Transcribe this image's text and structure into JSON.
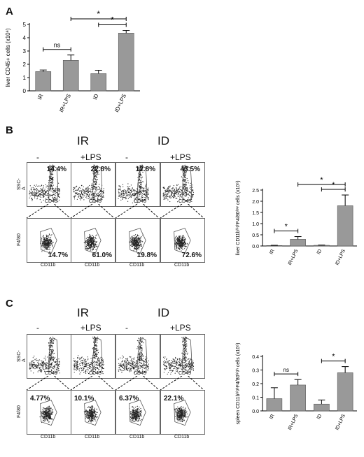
{
  "panels": {
    "A": {
      "letter": "A"
    },
    "B": {
      "letter": "B",
      "group_IR": "IR",
      "group_ID": "ID"
    },
    "C": {
      "letter": "C",
      "group_IR": "IR",
      "group_ID": "ID"
    }
  },
  "flow": {
    "conditions": [
      "-LPS",
      "+LPS",
      "-LPS",
      "+LPS"
    ],
    "top_xlabel": "CD45",
    "top_ylabel": "SSC-A",
    "bottom_xlabel": "CD11b",
    "bottom_ylabel": "F4/80",
    "B_top_pcts": [
      "14.4%",
      "22.8%",
      "12.8%",
      "43.5%"
    ],
    "B_bottom_pcts": [
      "14.7%",
      "61.0%",
      "19.8%",
      "72.6%"
    ],
    "C_bottom_pcts": [
      "4.77%",
      "10.1%",
      "6.37%",
      "22.1%"
    ]
  },
  "chart_data": [
    {
      "id": "A",
      "type": "bar",
      "categories": [
        "IR",
        "IR+LPS",
        "ID",
        "ID+LPS"
      ],
      "values": [
        1.45,
        2.3,
        1.3,
        4.35
      ],
      "errors": [
        0.12,
        0.4,
        0.25,
        0.2
      ],
      "ylabel": "liver CD45+ cells (x10⁶)",
      "ylim": [
        0,
        5
      ],
      "yticks": [
        "0",
        "1",
        "2",
        "3",
        "4",
        "5"
      ],
      "bar_color": "#999999",
      "comparisons": [
        {
          "from": 0,
          "to": 1,
          "label": "ns"
        },
        {
          "from": 2,
          "to": 3,
          "label": "*"
        },
        {
          "from": 1,
          "to": 3,
          "label": "*"
        }
      ]
    },
    {
      "id": "B",
      "type": "bar",
      "categories": [
        "IR",
        "IR+LPS",
        "ID",
        "ID+LPS"
      ],
      "values": [
        0.02,
        0.3,
        0.03,
        1.8
      ],
      "errors": [
        0.01,
        0.12,
        0.01,
        0.48
      ],
      "ylabel": "liver CD11bʰⁱᵍʰF4/80ˡᵒʷ cells (x10⁶)",
      "ylim": [
        0,
        2.5
      ],
      "yticks": [
        "0.0",
        "0.5",
        "1.0",
        "1.5",
        "2.0",
        "2.5"
      ],
      "bar_color": "#999999",
      "comparisons": [
        {
          "from": 0,
          "to": 1,
          "label": "*"
        },
        {
          "from": 2,
          "to": 3,
          "label": "*"
        },
        {
          "from": 1,
          "to": 3,
          "label": "*"
        }
      ]
    },
    {
      "id": "C",
      "type": "bar",
      "categories": [
        "IR",
        "IR+LPS",
        "ID",
        "ID+LPS"
      ],
      "values": [
        0.09,
        0.19,
        0.05,
        0.28
      ],
      "errors": [
        0.08,
        0.04,
        0.03,
        0.045
      ],
      "ylabel": "spleen CD11bʰⁱᵍʰF4/80ʰⁱᵍʰ cells (x10⁶)",
      "ylim": [
        0,
        0.4
      ],
      "yticks": [
        "0.0",
        "0.1",
        "0.2",
        "0.3",
        "0.4"
      ],
      "bar_color": "#999999",
      "comparisons": [
        {
          "from": 0,
          "to": 1,
          "label": "ns"
        },
        {
          "from": 2,
          "to": 3,
          "label": "*"
        }
      ]
    }
  ]
}
